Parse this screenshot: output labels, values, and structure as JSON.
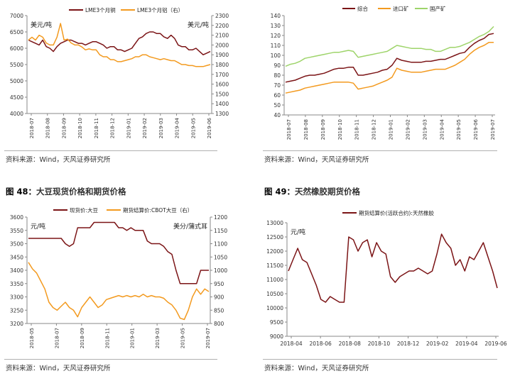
{
  "colors": {
    "maroon": "#7b1416",
    "orange": "#f39a1f",
    "green": "#9ed46a",
    "axis": "#888888",
    "grid_text": "#333333"
  },
  "sources": {
    "tl": "资料来源：Wind，天风证券研究所",
    "tr": "资料来源：Wind，天风证券研究所",
    "bl": "资料来源：Wind，天风证券研究所",
    "br": "资料来源：Wind，天风证券研究所"
  },
  "headings": {
    "bl": {
      "num": "图 48：",
      "text": "大豆现货价格和期货价格"
    },
    "br": {
      "num": "图 49：",
      "text": "天然橡胶期货价格"
    }
  },
  "chart_data": [
    {
      "id": "lme",
      "type": "line",
      "title": "",
      "left_unit": "美元/吨",
      "right_unit": "美元/吨",
      "legend": [
        "LME3个月铜",
        "LME3个月铝（右）"
      ],
      "ylim_left": [
        4000,
        7000
      ],
      "yticks_left": [
        "4000",
        "4500",
        "5000",
        "5500",
        "6000",
        "6500",
        "7000"
      ],
      "ylim_right": [
        1300,
        2300
      ],
      "yticks_right": [
        "1300",
        "1400",
        "1500",
        "1600",
        "1700",
        "1800",
        "1900",
        "2000",
        "2100",
        "2200",
        "2300"
      ],
      "xticks": [
        "2018-07",
        "2018-08",
        "2018-09",
        "2018-10",
        "2018-11",
        "2018-12",
        "2019-01",
        "2019-02",
        "2019-03",
        "2019-04",
        "2019-05",
        "2019-06"
      ],
      "series": [
        {
          "name": "LME3个月铜",
          "axis": "left",
          "color": "maroon",
          "values": [
            6250,
            6200,
            6150,
            6100,
            6250,
            6050,
            6000,
            5900,
            6050,
            6150,
            6200,
            6250,
            6250,
            6200,
            6150,
            6150,
            6100,
            6150,
            6200,
            6200,
            6150,
            6100,
            6000,
            6050,
            6050,
            5950,
            5950,
            5900,
            5950,
            6000,
            6150,
            6300,
            6350,
            6450,
            6500,
            6500,
            6450,
            6450,
            6350,
            6300,
            6400,
            6300,
            6100,
            6050,
            6050,
            5950,
            5950,
            6000,
            5900,
            5800,
            5850,
            5900
          ]
        },
        {
          "name": "LME3个月铝（右）",
          "axis": "right",
          "color": "orange",
          "values": [
            2050,
            2080,
            2050,
            2100,
            2080,
            2020,
            2000,
            2000,
            2080,
            2220,
            2050,
            2060,
            2020,
            2000,
            2000,
            1980,
            1950,
            1960,
            1950,
            1950,
            1900,
            1880,
            1880,
            1850,
            1850,
            1830,
            1830,
            1840,
            1850,
            1860,
            1880,
            1880,
            1900,
            1900,
            1880,
            1870,
            1860,
            1850,
            1860,
            1850,
            1840,
            1840,
            1820,
            1800,
            1800,
            1790,
            1790,
            1780,
            1780,
            1780,
            1790,
            1800
          ]
        }
      ]
    },
    {
      "id": "ore",
      "type": "line",
      "title": "",
      "legend": [
        "综合",
        "进口矿",
        "国产矿"
      ],
      "ylim": [
        40,
        140
      ],
      "yticks": [
        "40",
        "50",
        "60",
        "70",
        "80",
        "90",
        "100",
        "110",
        "120",
        "130",
        "140"
      ],
      "xticks": [
        "2018-07",
        "2018-08",
        "2018-09",
        "2018-10",
        "2018-11",
        "2018-12",
        "2019-01",
        "2019-02",
        "2019-03",
        "2019-04",
        "2019-05",
        "2019-06",
        "2019-07"
      ],
      "series": [
        {
          "name": "综合",
          "color": "maroon",
          "values": [
            73,
            74,
            75,
            77,
            79,
            80,
            80,
            81,
            82,
            84,
            86,
            87,
            87,
            88,
            88,
            80,
            80,
            81,
            82,
            83,
            85,
            86,
            90,
            97,
            95,
            94,
            93,
            93,
            93,
            94,
            94,
            95,
            96,
            96,
            98,
            100,
            102,
            103,
            108,
            112,
            115,
            117,
            121,
            122
          ]
        },
        {
          "name": "进口矿",
          "color": "orange",
          "values": [
            62,
            63,
            64,
            65,
            67,
            68,
            69,
            70,
            71,
            72,
            73,
            73,
            73,
            73,
            72,
            66,
            67,
            68,
            69,
            71,
            73,
            75,
            78,
            87,
            85,
            84,
            83,
            83,
            83,
            84,
            85,
            86,
            86,
            86,
            88,
            90,
            93,
            96,
            101,
            105,
            108,
            110,
            113,
            113
          ]
        },
        {
          "name": "国产矿",
          "color": "green",
          "values": [
            89,
            91,
            92,
            94,
            97,
            98,
            99,
            100,
            101,
            102,
            103,
            103,
            104,
            105,
            104,
            98,
            99,
            100,
            101,
            102,
            103,
            104,
            107,
            110,
            109,
            108,
            107,
            107,
            107,
            106,
            106,
            104,
            104,
            106,
            108,
            108,
            109,
            111,
            113,
            116,
            119,
            121,
            124,
            129
          ]
        }
      ]
    },
    {
      "id": "soy",
      "type": "line",
      "title": "",
      "left_unit": "元/吨",
      "right_unit": "美分/蒲式耳",
      "legend": [
        "现货价:大豆",
        "期货结算价:CBOT大豆（右）"
      ],
      "ylim_left": [
        3200,
        3600
      ],
      "yticks_left": [
        "3200",
        "3250",
        "3300",
        "3350",
        "3400",
        "3450",
        "3500",
        "3550",
        "3600"
      ],
      "ylim_right": [
        800,
        1200
      ],
      "yticks_right": [
        "800",
        "850",
        "900",
        "950",
        "1000",
        "1050",
        "1100",
        "1150",
        "1200"
      ],
      "xticks": [
        "2018-05",
        "2018-07",
        "2018-09",
        "2018-11",
        "2019-01",
        "2019-03",
        "2019-05",
        "2019-07"
      ],
      "series": [
        {
          "name": "现货价:大豆",
          "axis": "left",
          "color": "maroon",
          "values": [
            3520,
            3520,
            3520,
            3520,
            3520,
            3520,
            3520,
            3520,
            3520,
            3500,
            3490,
            3500,
            3560,
            3560,
            3560,
            3560,
            3580,
            3580,
            3580,
            3580,
            3580,
            3580,
            3560,
            3560,
            3550,
            3560,
            3550,
            3550,
            3550,
            3510,
            3500,
            3500,
            3500,
            3490,
            3470,
            3460,
            3400,
            3350,
            3350,
            3350,
            3350,
            3350,
            3400,
            3400,
            3400
          ]
        },
        {
          "name": "期货结算价:CBOT大豆（右）",
          "axis": "right",
          "color": "orange",
          "values": [
            1030,
            1005,
            990,
            960,
            930,
            880,
            860,
            850,
            865,
            880,
            860,
            850,
            825,
            860,
            880,
            900,
            880,
            860,
            870,
            890,
            895,
            900,
            905,
            900,
            905,
            900,
            905,
            900,
            910,
            900,
            905,
            900,
            900,
            895,
            880,
            870,
            850,
            820,
            815,
            850,
            900,
            930,
            910,
            930,
            920
          ]
        }
      ]
    },
    {
      "id": "rubber",
      "type": "line",
      "title": "",
      "left_unit": "元/吨",
      "legend": [
        "期货结算价(活跃合约):天然橡胶"
      ],
      "ylim": [
        9000,
        13000
      ],
      "yticks": [
        "9000",
        "9500",
        "10000",
        "10500",
        "11000",
        "11500",
        "12000",
        "12500",
        "13000"
      ],
      "xticks": [
        "2018-04",
        "2018-06",
        "2018-08",
        "2018-10",
        "2018-12",
        "2019-02",
        "2019-04",
        "2019-06"
      ],
      "series": [
        {
          "name": "期货结算价(活跃合约):天然橡胶",
          "color": "maroon",
          "values": [
            11300,
            11700,
            12100,
            11700,
            11600,
            11200,
            10800,
            10300,
            10200,
            10400,
            10300,
            10200,
            10200,
            12500,
            12400,
            12000,
            12300,
            12400,
            11800,
            12300,
            12000,
            11900,
            11100,
            10900,
            11100,
            11200,
            11300,
            11300,
            11400,
            11300,
            11200,
            11300,
            11900,
            12600,
            12300,
            12100,
            11500,
            11700,
            11300,
            11800,
            11700,
            12000,
            12300,
            11800,
            11300,
            10700
          ]
        }
      ]
    }
  ]
}
